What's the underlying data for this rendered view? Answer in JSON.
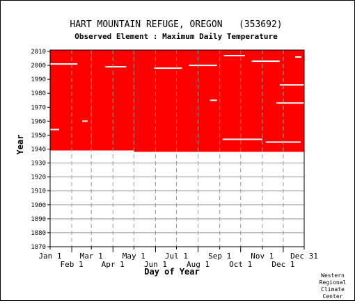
{
  "chart_data": {
    "type": "heatmap",
    "title": "HART MOUNTAIN REFUGE, OREGON   (353692)",
    "subtitle": "Observed Element : Maximum Daily Temperature",
    "xlabel": "Day of Year",
    "ylabel": "Year",
    "credit": [
      "Western",
      "Regional",
      "Climate",
      "Center"
    ],
    "x_ticks_top": [
      {
        "day": 1,
        "label": "Jan 1"
      },
      {
        "day": 60,
        "label": "Mar 1"
      },
      {
        "day": 121,
        "label": "May 1"
      },
      {
        "day": 182,
        "label": "Jul 1"
      },
      {
        "day": 244,
        "label": "Sep 1"
      },
      {
        "day": 305,
        "label": "Nov 1"
      },
      {
        "day": 365,
        "label": "Dec 31"
      }
    ],
    "x_ticks_bottom": [
      {
        "day": 32,
        "label": "Feb 1"
      },
      {
        "day": 91,
        "label": "Apr 1"
      },
      {
        "day": 152,
        "label": "Jun 1"
      },
      {
        "day": 213,
        "label": "Aug 1"
      },
      {
        "day": 274,
        "label": "Oct 1"
      },
      {
        "day": 335,
        "label": "Dec 1"
      }
    ],
    "y_ticks": [
      1870,
      1880,
      1890,
      1900,
      1910,
      1920,
      1930,
      1940,
      1950,
      1960,
      1970,
      1980,
      1990,
      2000,
      2010
    ],
    "xlim": [
      1,
      365
    ],
    "ylim": [
      1870,
      2011
    ],
    "data_color": "#ff0000",
    "record_coverage": [
      {
        "start_day": 1,
        "end_day": 60,
        "start_year": 1939,
        "end_year": 2011
      },
      {
        "start_day": 60,
        "end_day": 121,
        "start_year": 1939,
        "end_year": 2011
      },
      {
        "start_day": 121,
        "end_day": 365,
        "start_year": 1938,
        "end_year": 2011
      }
    ],
    "missing_segments": [
      {
        "year": 1954,
        "start_day": 1,
        "end_day": 14
      },
      {
        "year": 1960,
        "start_day": 47,
        "end_day": 55
      },
      {
        "year": 1975,
        "start_day": 230,
        "end_day": 240
      },
      {
        "year": 1947,
        "start_day": 248,
        "end_day": 305
      },
      {
        "year": 1945,
        "start_day": 310,
        "end_day": 360
      },
      {
        "year": 1973,
        "start_day": 325,
        "end_day": 365
      },
      {
        "year": 1986,
        "start_day": 330,
        "end_day": 365
      },
      {
        "year": 2007,
        "start_day": 250,
        "end_day": 280
      },
      {
        "year": 2003,
        "start_day": 290,
        "end_day": 330
      },
      {
        "year": 2006,
        "start_day": 352,
        "end_day": 361
      },
      {
        "year": 2001,
        "start_day": 1,
        "end_day": 40
      },
      {
        "year": 2000,
        "start_day": 200,
        "end_day": 240
      },
      {
        "year": 1999,
        "start_day": 80,
        "end_day": 110
      },
      {
        "year": 1998,
        "start_day": 150,
        "end_day": 190
      }
    ]
  }
}
